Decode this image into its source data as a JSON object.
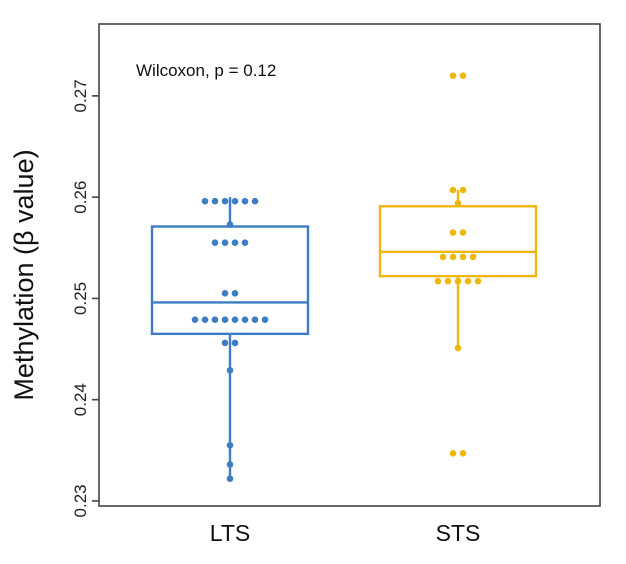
{
  "chart_data": {
    "type": "box",
    "ylabel": "Methylation (β value)",
    "xlabel": "",
    "ylim": [
      0.2295,
      0.2771
    ],
    "yticks": [
      "0.23",
      "0.24",
      "0.25",
      "0.26",
      "0.27"
    ],
    "annotation": "Wilcoxon, p = 0.12",
    "grid": false,
    "groups": [
      {
        "label": "LTS",
        "color": "#3C7DC4",
        "box": {
          "q1": 0.2465,
          "median": 0.2496,
          "q3": 0.2571,
          "whisker_low": 0.2322,
          "whisker_high": 0.26
        },
        "points": [
          0.2596,
          0.2596,
          0.2596,
          0.2596,
          0.2596,
          0.2596,
          0.2573,
          0.2555,
          0.2555,
          0.2555,
          0.2555,
          0.2505,
          0.2505,
          0.2479,
          0.2479,
          0.2479,
          0.2479,
          0.2479,
          0.2479,
          0.2479,
          0.2479,
          0.2456,
          0.2456,
          0.2429,
          0.2355,
          0.2336,
          0.2322
        ]
      },
      {
        "label": "STS",
        "color": "#EDB710",
        "box": {
          "q1": 0.2522,
          "median": 0.2546,
          "q3": 0.2591,
          "whisker_low": 0.2451,
          "whisker_high": 0.2607
        },
        "points": [
          0.272,
          0.272,
          0.2607,
          0.2607,
          0.2594,
          0.2565,
          0.2565,
          0.2541,
          0.2541,
          0.2541,
          0.2541,
          0.2517,
          0.2517,
          0.2517,
          0.2517,
          0.2517,
          0.2451,
          0.2347,
          0.2347
        ]
      }
    ]
  }
}
